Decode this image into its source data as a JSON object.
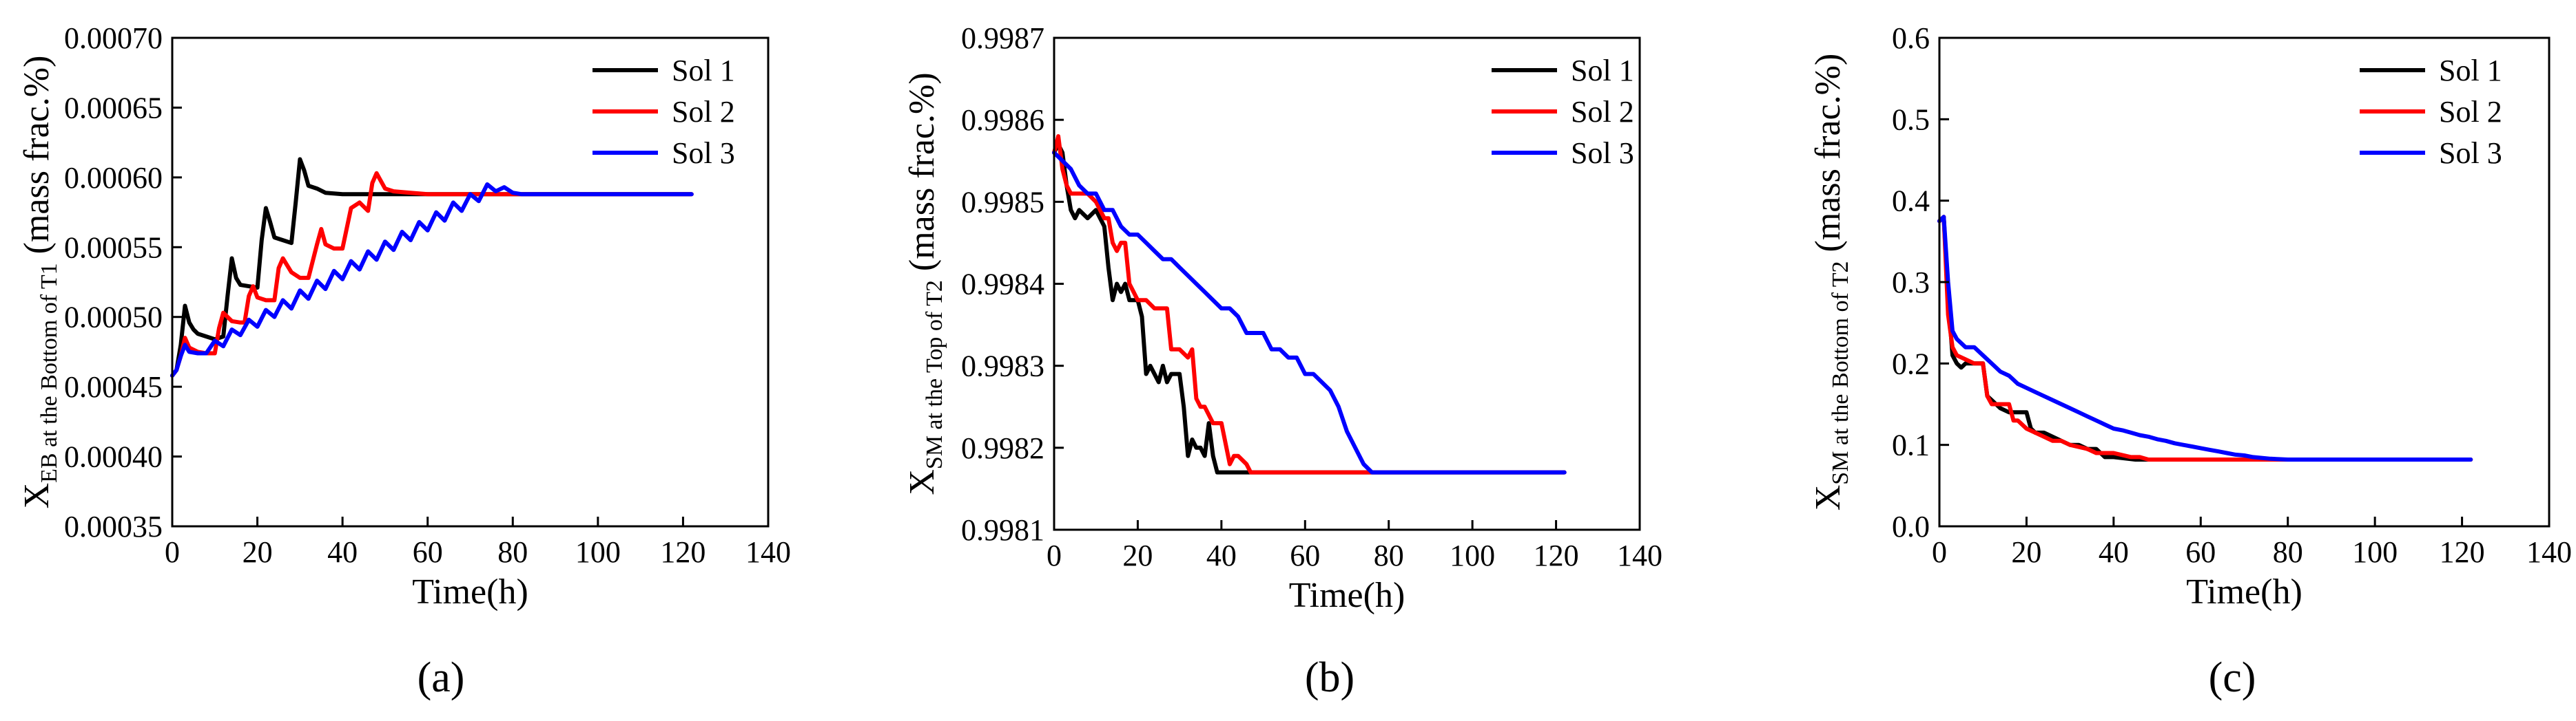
{
  "figure": {
    "background": "#ffffff",
    "series_colors": {
      "Sol 1": "#000000",
      "Sol 2": "#ff0000",
      "Sol 3": "#0000ff"
    }
  },
  "chart_data": [
    {
      "type": "line",
      "panel_label": "(a)",
      "ylabel": {
        "prefix": "X",
        "subscript": "EB at the Bottom of T1",
        "suffix": " (mass frac.%)"
      },
      "xlabel": "Time(h)",
      "xlim": [
        0,
        140
      ],
      "ylim": [
        0.00035,
        0.0007
      ],
      "xticks": [
        0,
        20,
        40,
        60,
        80,
        100,
        120,
        140
      ],
      "yticks": [
        "0.00035",
        "0.00040",
        "0.00045",
        "0.00050",
        "0.00055",
        "0.00060",
        "0.00065",
        "0.00070"
      ],
      "legend": {
        "position": "top-right",
        "entries": [
          "Sol 1",
          "Sol 2",
          "Sol 3"
        ]
      },
      "series": [
        {
          "name": "Sol 1",
          "x": [
            0,
            1,
            2,
            3,
            4,
            5,
            6,
            8,
            10,
            12,
            13,
            14,
            15,
            16,
            18,
            20,
            21,
            22,
            23,
            24,
            26,
            28,
            29,
            30,
            31,
            32,
            34,
            36,
            40,
            50,
            60,
            70,
            80,
            90,
            100,
            110,
            122
          ],
          "y": [
            0.000458,
            0.000462,
            0.00048,
            0.000508,
            0.000496,
            0.000491,
            0.000488,
            0.000486,
            0.000484,
            0.000486,
            0.000515,
            0.000542,
            0.000528,
            0.000523,
            0.000522,
            0.000521,
            0.000555,
            0.000578,
            0.000568,
            0.000557,
            0.000555,
            0.000553,
            0.000582,
            0.000613,
            0.000605,
            0.000594,
            0.000592,
            0.000589,
            0.000588,
            0.000588,
            0.000588,
            0.000588,
            0.000588,
            0.000588,
            0.000588,
            0.000588,
            0.000588
          ]
        },
        {
          "name": "Sol 2",
          "x": [
            0,
            1,
            2,
            3,
            4,
            6,
            8,
            10,
            11,
            12,
            14,
            16,
            17,
            18,
            19,
            20,
            22,
            24,
            25,
            26,
            28,
            30,
            32,
            34,
            35,
            36,
            38,
            40,
            42,
            44,
            46,
            47,
            48,
            50,
            52,
            56,
            60,
            70,
            80,
            90,
            100,
            110,
            122
          ],
          "y": [
            0.000458,
            0.000462,
            0.000472,
            0.000485,
            0.000478,
            0.000475,
            0.000474,
            0.000474,
            0.000492,
            0.000503,
            0.000497,
            0.000496,
            0.000496,
            0.000515,
            0.000522,
            0.000514,
            0.000512,
            0.000512,
            0.000535,
            0.000542,
            0.000532,
            0.000528,
            0.000528,
            0.000552,
            0.000563,
            0.000552,
            0.000549,
            0.000549,
            0.000578,
            0.000582,
            0.000576,
            0.000596,
            0.000603,
            0.000592,
            0.00059,
            0.000589,
            0.000588,
            0.000588,
            0.000588,
            0.000588,
            0.000588,
            0.000588,
            0.000588
          ]
        },
        {
          "name": "Sol 3",
          "x": [
            0,
            1,
            2,
            3,
            4,
            6,
            8,
            10,
            12,
            14,
            16,
            18,
            20,
            22,
            24,
            26,
            28,
            30,
            32,
            34,
            36,
            38,
            40,
            42,
            44,
            46,
            48,
            50,
            52,
            54,
            56,
            58,
            60,
            62,
            64,
            66,
            68,
            70,
            72,
            74,
            76,
            78,
            80,
            82,
            84,
            90,
            100,
            110,
            122
          ],
          "y": [
            0.000458,
            0.000462,
            0.000472,
            0.00048,
            0.000475,
            0.000474,
            0.000474,
            0.000483,
            0.000479,
            0.000491,
            0.000487,
            0.000498,
            0.000493,
            0.000505,
            0.0005,
            0.000512,
            0.000506,
            0.000519,
            0.000513,
            0.000526,
            0.00052,
            0.000533,
            0.000527,
            0.00054,
            0.000534,
            0.000547,
            0.000541,
            0.000554,
            0.000548,
            0.000561,
            0.000555,
            0.000568,
            0.000562,
            0.000575,
            0.000569,
            0.000582,
            0.000576,
            0.000588,
            0.000583,
            0.000595,
            0.00059,
            0.000593,
            0.000589,
            0.000588,
            0.000588,
            0.000588,
            0.000588,
            0.000588,
            0.000588
          ]
        }
      ]
    },
    {
      "type": "line",
      "panel_label": "(b)",
      "ylabel": {
        "prefix": "X",
        "subscript": "SM at the Top of T2",
        "suffix": " (mass frac.%)"
      },
      "xlabel": "Time(h)",
      "xlim": [
        0,
        140
      ],
      "ylim": [
        0.9981,
        0.9987
      ],
      "xticks": [
        0,
        20,
        40,
        60,
        80,
        100,
        120,
        140
      ],
      "yticks": [
        "0.9981",
        "0.9982",
        "0.9983",
        "0.9984",
        "0.9985",
        "0.9986",
        "0.9987"
      ],
      "legend": {
        "position": "top-right",
        "entries": [
          "Sol 1",
          "Sol 2",
          "Sol 3"
        ]
      },
      "series": [
        {
          "name": "Sol 1",
          "x": [
            0,
            1,
            2,
            3,
            4,
            5,
            6,
            8,
            10,
            12,
            13,
            14,
            15,
            16,
            17,
            18,
            20,
            21,
            22,
            23,
            24,
            25,
            26,
            27,
            28,
            29,
            30,
            31,
            32,
            33,
            34,
            35,
            36,
            37,
            38,
            39,
            40,
            42,
            45,
            50,
            60,
            70,
            80,
            90,
            100,
            110,
            122
          ],
          "y": [
            0.99856,
            0.99857,
            0.99856,
            0.99852,
            0.99849,
            0.99848,
            0.99849,
            0.99848,
            0.99849,
            0.99847,
            0.99842,
            0.99838,
            0.9984,
            0.99839,
            0.9984,
            0.99838,
            0.99838,
            0.99836,
            0.99829,
            0.9983,
            0.99829,
            0.99828,
            0.9983,
            0.99828,
            0.99829,
            0.99829,
            0.99829,
            0.99825,
            0.99819,
            0.99821,
            0.9982,
            0.9982,
            0.99819,
            0.99823,
            0.99819,
            0.99817,
            0.99817,
            0.99817,
            0.99817,
            0.99817,
            0.99817,
            0.99817,
            0.99817,
            0.99817,
            0.99817,
            0.99817,
            0.99817
          ]
        },
        {
          "name": "Sol 2",
          "x": [
            0,
            1,
            2,
            3,
            4,
            6,
            8,
            10,
            12,
            13,
            14,
            15,
            16,
            17,
            18,
            19,
            20,
            22,
            24,
            26,
            27,
            28,
            30,
            32,
            33,
            34,
            35,
            36,
            38,
            40,
            42,
            43,
            44,
            46,
            47,
            48,
            50,
            55,
            60,
            70,
            80,
            90,
            100,
            110,
            122
          ],
          "y": [
            0.99856,
            0.99858,
            0.99854,
            0.99852,
            0.99851,
            0.99851,
            0.99851,
            0.9985,
            0.99848,
            0.99848,
            0.99845,
            0.99844,
            0.99845,
            0.99845,
            0.9984,
            0.99839,
            0.99838,
            0.99838,
            0.99837,
            0.99837,
            0.99837,
            0.99832,
            0.99832,
            0.99831,
            0.99832,
            0.99826,
            0.99825,
            0.99825,
            0.99823,
            0.99823,
            0.99818,
            0.99819,
            0.99819,
            0.99818,
            0.99817,
            0.99817,
            0.99817,
            0.99817,
            0.99817,
            0.99817,
            0.99817,
            0.99817,
            0.99817,
            0.99817,
            0.99817
          ]
        },
        {
          "name": "Sol 3",
          "x": [
            0,
            2,
            4,
            6,
            8,
            10,
            12,
            14,
            16,
            18,
            20,
            22,
            24,
            26,
            28,
            30,
            32,
            34,
            36,
            38,
            40,
            42,
            44,
            46,
            48,
            50,
            52,
            54,
            56,
            58,
            60,
            62,
            64,
            66,
            68,
            70,
            72,
            74,
            76,
            78,
            80,
            90,
            100,
            110,
            122
          ],
          "y": [
            0.99856,
            0.99855,
            0.99854,
            0.99852,
            0.99851,
            0.99851,
            0.99849,
            0.99849,
            0.99847,
            0.99846,
            0.99846,
            0.99845,
            0.99844,
            0.99843,
            0.99843,
            0.99842,
            0.99841,
            0.9984,
            0.99839,
            0.99838,
            0.99837,
            0.99837,
            0.99836,
            0.99834,
            0.99834,
            0.99834,
            0.99832,
            0.99832,
            0.99831,
            0.99831,
            0.99829,
            0.99829,
            0.99828,
            0.99827,
            0.99825,
            0.99822,
            0.9982,
            0.99818,
            0.99817,
            0.99817,
            0.99817,
            0.99817,
            0.99817,
            0.99817,
            0.99817
          ]
        }
      ]
    },
    {
      "type": "line",
      "panel_label": "(c)",
      "ylabel": {
        "prefix": "X",
        "subscript": "SM at the Bottom of T2",
        "suffix": " (mass frac.%)"
      },
      "xlabel": "Time(h)",
      "xlim": [
        0,
        140
      ],
      "ylim": [
        0.0,
        0.6
      ],
      "xticks": [
        0,
        20,
        40,
        60,
        80,
        100,
        120,
        140
      ],
      "yticks": [
        "0.0",
        "0.1",
        "0.2",
        "0.3",
        "0.4",
        "0.5",
        "0.6"
      ],
      "legend": {
        "position": "top-right",
        "entries": [
          "Sol 1",
          "Sol 2",
          "Sol 3"
        ]
      },
      "series": [
        {
          "name": "Sol 1",
          "x": [
            0,
            1,
            2,
            3,
            4,
            5,
            6,
            8,
            10,
            11,
            12,
            14,
            16,
            18,
            20,
            21,
            22,
            24,
            26,
            28,
            30,
            32,
            34,
            36,
            38,
            40,
            45,
            50,
            60,
            70,
            80,
            90,
            100,
            110,
            122
          ],
          "y": [
            0.375,
            0.38,
            0.28,
            0.21,
            0.2,
            0.195,
            0.2,
            0.2,
            0.2,
            0.16,
            0.155,
            0.145,
            0.14,
            0.14,
            0.14,
            0.12,
            0.115,
            0.115,
            0.11,
            0.105,
            0.1,
            0.1,
            0.095,
            0.095,
            0.085,
            0.085,
            0.082,
            0.082,
            0.082,
            0.082,
            0.082,
            0.082,
            0.082,
            0.082,
            0.082
          ]
        },
        {
          "name": "Sol 2",
          "x": [
            0,
            1,
            2,
            3,
            4,
            6,
            8,
            10,
            11,
            12,
            14,
            16,
            17,
            18,
            20,
            22,
            24,
            26,
            28,
            30,
            34,
            36,
            40,
            44,
            46,
            48,
            50,
            60,
            70,
            80,
            90,
            100,
            110,
            122
          ],
          "y": [
            0.375,
            0.38,
            0.26,
            0.22,
            0.21,
            0.205,
            0.2,
            0.2,
            0.16,
            0.15,
            0.15,
            0.15,
            0.13,
            0.13,
            0.12,
            0.115,
            0.11,
            0.105,
            0.105,
            0.1,
            0.095,
            0.09,
            0.09,
            0.085,
            0.085,
            0.082,
            0.082,
            0.082,
            0.082,
            0.082,
            0.082,
            0.082,
            0.082,
            0.082
          ]
        },
        {
          "name": "Sol 3",
          "x": [
            0,
            1,
            2,
            3,
            4,
            6,
            8,
            10,
            12,
            14,
            16,
            18,
            20,
            22,
            24,
            26,
            28,
            30,
            32,
            34,
            36,
            38,
            40,
            42,
            44,
            46,
            48,
            50,
            52,
            54,
            56,
            58,
            60,
            62,
            64,
            66,
            68,
            70,
            72,
            74,
            76,
            80,
            90,
            100,
            110,
            122
          ],
          "y": [
            0.375,
            0.38,
            0.3,
            0.24,
            0.23,
            0.22,
            0.22,
            0.21,
            0.2,
            0.19,
            0.185,
            0.175,
            0.17,
            0.165,
            0.16,
            0.155,
            0.15,
            0.145,
            0.14,
            0.135,
            0.13,
            0.125,
            0.12,
            0.118,
            0.115,
            0.112,
            0.11,
            0.107,
            0.105,
            0.102,
            0.1,
            0.098,
            0.096,
            0.094,
            0.092,
            0.09,
            0.088,
            0.087,
            0.085,
            0.084,
            0.083,
            0.082,
            0.082,
            0.082,
            0.082,
            0.082
          ]
        }
      ]
    }
  ]
}
